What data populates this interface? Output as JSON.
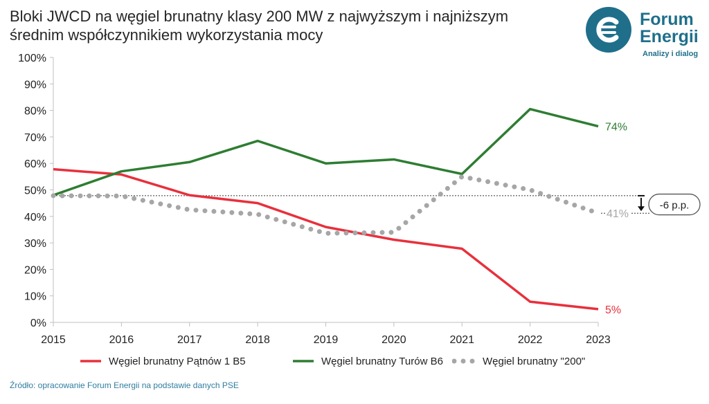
{
  "title": "Bloki JWCD na węgiel brunatny klasy 200 MW z najwyższym i najniższym średnim współczynnikiem wykorzystania mocy",
  "logo": {
    "name_line1": "Forum",
    "name_line2": "Energii",
    "tagline": "Analizy i dialog",
    "icon": "forum-energii-logo-icon",
    "color": "#1f6f8b"
  },
  "source": "Źródło: opracowanie Forum Energii na podstawie danych PSE",
  "chart_data": {
    "type": "line",
    "x": [
      "2015",
      "2016",
      "2017",
      "2018",
      "2019",
      "2020",
      "2021",
      "2022",
      "2023"
    ],
    "ylim": [
      0,
      100
    ],
    "yticks": [
      "0%",
      "10%",
      "20%",
      "30%",
      "40%",
      "50%",
      "60%",
      "70%",
      "80%",
      "90%",
      "100%"
    ],
    "grid": false,
    "legend_position": "bottom",
    "series": [
      {
        "name": "Węgiel brunatny Pątnów 1 B5",
        "color": "#e8303c",
        "style": "solid",
        "values": [
          57.8,
          55.8,
          48.0,
          45.0,
          36.0,
          31.2,
          27.8,
          7.8,
          5.0
        ],
        "end_label": "5%"
      },
      {
        "name": "Węgiel brunatny Turów B6",
        "color": "#2e7d32",
        "style": "solid",
        "values": [
          48.0,
          57.0,
          60.5,
          68.5,
          60.0,
          61.5,
          56.0,
          80.5,
          74.0
        ],
        "end_label": "74%"
      },
      {
        "name": "Węgiel brunatny \"200\"",
        "color": "#a6a6a6",
        "style": "dotted",
        "values": [
          47.8,
          47.7,
          42.5,
          40.8,
          33.6,
          34.0,
          55.0,
          50.0,
          41.2
        ],
        "end_label": "41%"
      }
    ],
    "annotations": {
      "reference_value": 47.8,
      "delta_label": "-6 p.p."
    }
  }
}
